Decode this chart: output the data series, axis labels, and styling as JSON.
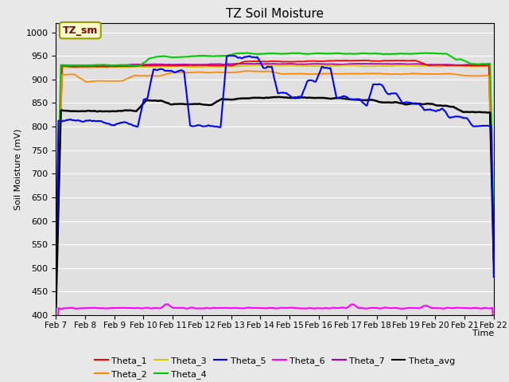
{
  "title": "TZ Soil Moisture",
  "xlabel": "Time",
  "ylabel": "Soil Moisture (mV)",
  "ylim": [
    400,
    1020
  ],
  "yticks": [
    400,
    450,
    500,
    550,
    600,
    650,
    700,
    750,
    800,
    850,
    900,
    950,
    1000
  ],
  "fig_bg_color": "#e8e8e8",
  "plot_bg_color": "#e0e0e0",
  "annotation_text": "TZ_sm",
  "annotation_bg": "#ffffcc",
  "annotation_border": "#999900",
  "annotation_text_color": "#880000",
  "series_colors": {
    "Theta_1": "#ff0000",
    "Theta_2": "#ff8800",
    "Theta_3": "#cccc00",
    "Theta_4": "#00cc00",
    "Theta_5": "#0000ff",
    "Theta_6": "#ff00ff",
    "Theta_7": "#aa00aa",
    "Theta_avg": "#000000"
  },
  "num_points": 360,
  "x_start": 0,
  "x_end": 15,
  "xtick_labels": [
    "Feb 7",
    "Feb 8",
    "Feb 9",
    "Feb 10",
    "Feb 11",
    "Feb 12",
    "Feb 13",
    "Feb 14",
    "Feb 15",
    "Feb 16",
    "Feb 17",
    "Feb 18",
    "Feb 19",
    "Feb 20",
    "Feb 21",
    "Feb 22"
  ],
  "xtick_positions": [
    0,
    1,
    2,
    3,
    4,
    5,
    6,
    7,
    8,
    9,
    10,
    11,
    12,
    13,
    14,
    15
  ]
}
